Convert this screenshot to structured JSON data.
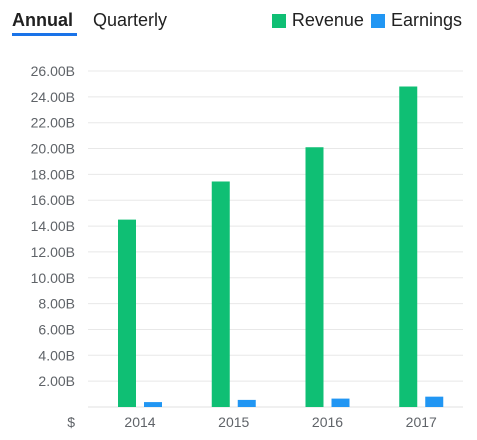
{
  "tabs": {
    "annual": "Annual",
    "quarterly": "Quarterly",
    "active": "annual"
  },
  "legend": [
    {
      "label": "Revenue",
      "color": "#0fbf74"
    },
    {
      "label": "Earnings",
      "color": "#2196f3"
    }
  ],
  "chart_data": {
    "type": "bar",
    "categories": [
      "2014",
      "2015",
      "2016",
      "2017"
    ],
    "series": [
      {
        "name": "Revenue",
        "color": "#0fbf74",
        "values": [
          14.5,
          17.45,
          20.1,
          24.8
        ]
      },
      {
        "name": "Earnings",
        "color": "#2196f3",
        "values": [
          0.38,
          0.55,
          0.65,
          0.8
        ]
      }
    ],
    "y_ticks": [
      "2.00B",
      "4.00B",
      "6.00B",
      "8.00B",
      "10.00B",
      "12.00B",
      "14.00B",
      "16.00B",
      "18.00B",
      "20.00B",
      "22.00B",
      "24.00B",
      "26.00B"
    ],
    "y_tick_values": [
      2,
      4,
      6,
      8,
      10,
      12,
      14,
      16,
      18,
      20,
      22,
      24,
      26
    ],
    "ylim": [
      0,
      26
    ],
    "currency_label": "$",
    "grid": true
  }
}
